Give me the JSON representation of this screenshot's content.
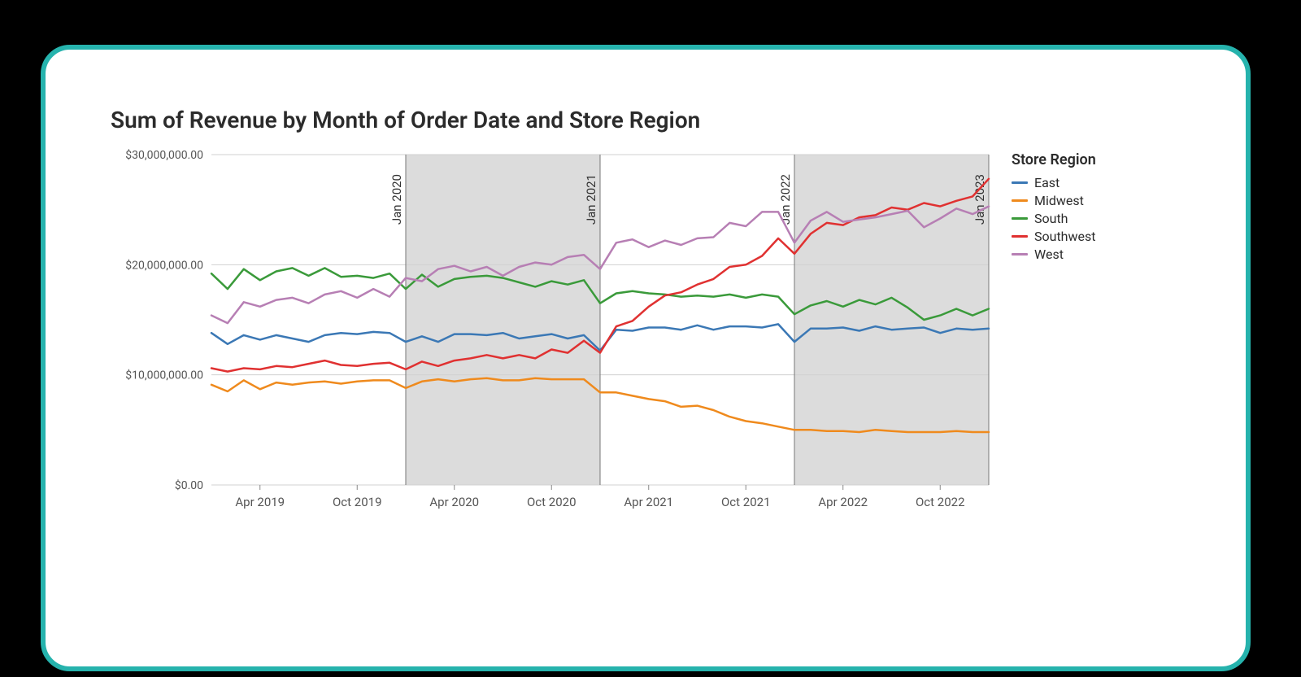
{
  "chart": {
    "type": "line",
    "title": "Sum of Revenue by Month of Order Date and Store Region",
    "title_fontsize": 28,
    "title_color": "#2b2b2b",
    "background_color": "#ffffff",
    "card_border_color": "#26b3ad",
    "card_border_width": 6,
    "card_border_radius": 36,
    "gridline_color": "#d0d0d0",
    "axis_font_color": "#555555",
    "axis_fontsize": 14,
    "line_width": 2.5,
    "ylim": [
      0,
      30000000
    ],
    "yticks": [
      {
        "v": 0,
        "label": "$0.00"
      },
      {
        "v": 10000000,
        "label": "$10,000,000.00"
      },
      {
        "v": 20000000,
        "label": "$20,000,000.00"
      },
      {
        "v": 30000000,
        "label": "$30,000,000.00"
      }
    ],
    "x_n": 49,
    "xticks": [
      {
        "i": 3,
        "label": "Apr 2019"
      },
      {
        "i": 9,
        "label": "Oct 2019"
      },
      {
        "i": 15,
        "label": "Apr 2020"
      },
      {
        "i": 21,
        "label": "Oct 2020"
      },
      {
        "i": 27,
        "label": "Apr 2021"
      },
      {
        "i": 33,
        "label": "Oct 2021"
      },
      {
        "i": 39,
        "label": "Apr 2022"
      },
      {
        "i": 45,
        "label": "Oct 2022"
      }
    ],
    "shaded_bands": [
      {
        "from_i": 12,
        "to_i": 24,
        "fill": "#bfbfbf",
        "opacity": 0.55
      },
      {
        "from_i": 36,
        "to_i": 48,
        "fill": "#bfbfbf",
        "opacity": 0.55
      }
    ],
    "vlines": [
      {
        "i": 12,
        "label": "Jan 2020",
        "color": "#777777"
      },
      {
        "i": 24,
        "label": "Jan 2021",
        "color": "#777777"
      },
      {
        "i": 36,
        "label": "Jan 2022",
        "color": "#777777"
      },
      {
        "i": 48,
        "label": "Jan 2023",
        "color": "#777777"
      }
    ],
    "legend_title": "Store Region",
    "series": [
      {
        "name": "East",
        "color": "#3b78b5",
        "values": [
          13.8,
          12.8,
          13.6,
          13.2,
          13.6,
          13.3,
          13.0,
          13.6,
          13.8,
          13.7,
          13.9,
          13.8,
          13.0,
          13.5,
          13.0,
          13.7,
          13.7,
          13.6,
          13.8,
          13.3,
          13.5,
          13.7,
          13.3,
          13.6,
          12.2,
          14.1,
          14.0,
          14.3,
          14.3,
          14.1,
          14.5,
          14.1,
          14.4,
          14.4,
          14.3,
          14.6,
          13.0,
          14.2,
          14.2,
          14.3,
          14.0,
          14.4,
          14.1,
          14.2,
          14.3,
          13.8,
          14.2,
          14.1,
          14.2
        ]
      },
      {
        "name": "Midwest",
        "color": "#ef8a1d",
        "values": [
          9.1,
          8.5,
          9.5,
          8.7,
          9.3,
          9.1,
          9.3,
          9.4,
          9.2,
          9.4,
          9.5,
          9.5,
          8.8,
          9.4,
          9.6,
          9.4,
          9.6,
          9.7,
          9.5,
          9.5,
          9.7,
          9.6,
          9.6,
          9.6,
          8.4,
          8.4,
          8.1,
          7.8,
          7.6,
          7.1,
          7.2,
          6.8,
          6.2,
          5.8,
          5.6,
          5.3,
          5.0,
          5.0,
          4.9,
          4.9,
          4.8,
          5.0,
          4.9,
          4.8,
          4.8,
          4.8,
          4.9,
          4.8,
          4.8
        ]
      },
      {
        "name": "South",
        "color": "#3a9a3a",
        "values": [
          19.2,
          17.8,
          19.6,
          18.6,
          19.4,
          19.7,
          19.0,
          19.7,
          18.9,
          19.0,
          18.8,
          19.2,
          17.8,
          19.1,
          18.0,
          18.7,
          18.9,
          19.0,
          18.8,
          18.4,
          18.0,
          18.5,
          18.2,
          18.6,
          16.5,
          17.4,
          17.6,
          17.4,
          17.3,
          17.1,
          17.2,
          17.1,
          17.3,
          17.0,
          17.3,
          17.1,
          15.5,
          16.3,
          16.7,
          16.2,
          16.8,
          16.4,
          17.0,
          16.1,
          15.0,
          15.4,
          16.0,
          15.4,
          16.0
        ]
      },
      {
        "name": "Southwest",
        "color": "#e03131",
        "values": [
          10.6,
          10.3,
          10.6,
          10.5,
          10.8,
          10.7,
          11.0,
          11.3,
          10.9,
          10.8,
          11.0,
          11.1,
          10.5,
          11.2,
          10.8,
          11.3,
          11.5,
          11.8,
          11.5,
          11.8,
          11.5,
          12.3,
          12.0,
          13.1,
          12.0,
          14.4,
          14.9,
          16.2,
          17.2,
          17.5,
          18.2,
          18.7,
          19.8,
          20.0,
          20.8,
          22.4,
          21.0,
          22.8,
          23.8,
          23.6,
          24.3,
          24.5,
          25.2,
          25.0,
          25.6,
          25.3,
          25.8,
          26.2,
          27.8
        ]
      },
      {
        "name": "West",
        "color": "#b77fb4",
        "values": [
          15.4,
          14.7,
          16.6,
          16.2,
          16.8,
          17.0,
          16.5,
          17.3,
          17.6,
          17.0,
          17.8,
          17.1,
          18.8,
          18.5,
          19.6,
          19.9,
          19.4,
          19.8,
          19.0,
          19.8,
          20.2,
          20.0,
          20.7,
          20.9,
          19.6,
          22.0,
          22.3,
          21.6,
          22.2,
          21.8,
          22.4,
          22.5,
          23.8,
          23.5,
          24.8,
          24.8,
          22.0,
          24.0,
          24.8,
          23.9,
          24.1,
          24.3,
          24.6,
          24.9,
          23.4,
          24.2,
          25.1,
          24.6,
          25.3
        ]
      }
    ]
  }
}
